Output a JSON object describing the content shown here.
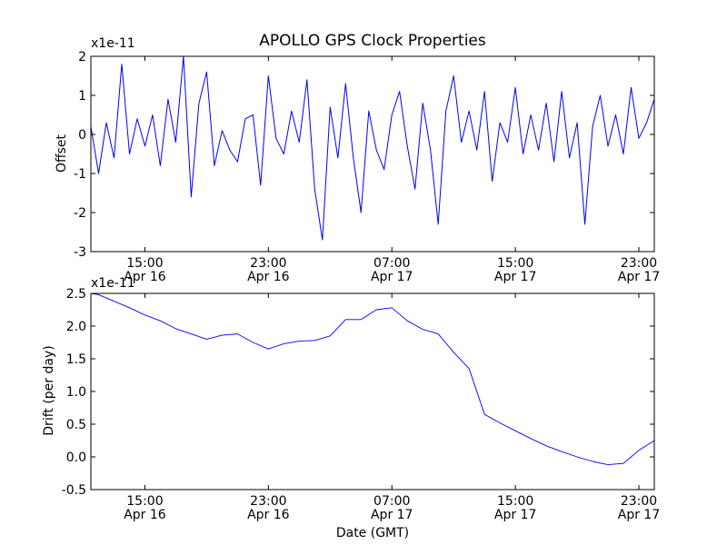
{
  "figure": {
    "title": "APOLLO GPS Clock Properties",
    "background": "#ffffff",
    "line_color": "#0000ff"
  },
  "chart_data": [
    {
      "type": "line",
      "title": "APOLLO GPS Clock Properties",
      "xlabel": "",
      "ylabel": "Offset",
      "y_scale_label": "x1e-11",
      "xlim": [
        "Apr 16 11:30",
        "Apr 18 00:00"
      ],
      "ylim": [
        -3,
        2
      ],
      "yticks": [
        "2",
        "1",
        "0",
        "-1",
        "-2",
        "-3"
      ],
      "xticks": [
        {
          "time": "15:00",
          "date": "Apr 16"
        },
        {
          "time": "23:00",
          "date": "Apr 16"
        },
        {
          "time": "07:00",
          "date": "Apr 17"
        },
        {
          "time": "15:00",
          "date": "Apr 17"
        },
        {
          "time": "23:00",
          "date": "Apr 17"
        }
      ],
      "x": [
        "Apr 16 11:30",
        "Apr 16 12:00",
        "Apr 16 12:30",
        "Apr 16 13:00",
        "Apr 16 13:30",
        "Apr 16 14:00",
        "Apr 16 14:30",
        "Apr 16 15:00",
        "Apr 16 15:30",
        "Apr 16 16:00",
        "Apr 16 16:30",
        "Apr 16 17:00",
        "Apr 16 17:30",
        "Apr 16 18:00",
        "Apr 16 18:30",
        "Apr 16 19:00",
        "Apr 16 19:30",
        "Apr 16 20:00",
        "Apr 16 20:30",
        "Apr 16 21:00",
        "Apr 16 21:30",
        "Apr 16 22:00",
        "Apr 16 22:30",
        "Apr 16 23:00",
        "Apr 16 23:30",
        "Apr 17 00:00",
        "Apr 17 00:30",
        "Apr 17 01:00",
        "Apr 17 01:30",
        "Apr 17 02:00",
        "Apr 17 02:30",
        "Apr 17 03:00",
        "Apr 17 03:30",
        "Apr 17 04:00",
        "Apr 17 04:30",
        "Apr 17 05:00",
        "Apr 17 05:30",
        "Apr 17 06:00",
        "Apr 17 06:30",
        "Apr 17 07:00",
        "Apr 17 07:30",
        "Apr 17 08:00",
        "Apr 17 08:30",
        "Apr 17 09:00",
        "Apr 17 09:30",
        "Apr 17 10:00",
        "Apr 17 10:30",
        "Apr 17 11:00",
        "Apr 17 11:30",
        "Apr 17 12:00",
        "Apr 17 12:30",
        "Apr 17 13:00",
        "Apr 17 13:30",
        "Apr 17 14:00",
        "Apr 17 14:30",
        "Apr 17 15:00",
        "Apr 17 15:30",
        "Apr 17 16:00",
        "Apr 17 16:30",
        "Apr 17 17:00",
        "Apr 17 17:30",
        "Apr 17 18:00",
        "Apr 17 18:30",
        "Apr 17 19:00",
        "Apr 17 19:30",
        "Apr 17 20:00",
        "Apr 17 20:30",
        "Apr 17 21:00",
        "Apr 17 21:30",
        "Apr 17 22:00",
        "Apr 17 22:30",
        "Apr 17 23:00",
        "Apr 17 23:30",
        "Apr 18 00:00"
      ],
      "series": [
        {
          "values": [
            0.2,
            -1.0,
            0.3,
            -0.6,
            1.8,
            -0.5,
            0.4,
            -0.3,
            0.5,
            -0.8,
            0.9,
            -0.2,
            2.0,
            -1.6,
            0.8,
            1.6,
            -0.8,
            0.1,
            -0.4,
            -0.7,
            0.4,
            0.5,
            -1.3,
            1.5,
            -0.1,
            -0.5,
            0.6,
            -0.2,
            1.4,
            -1.4,
            -2.7,
            0.7,
            -0.6,
            1.3,
            -0.6,
            -2.0,
            0.6,
            -0.4,
            -0.9,
            0.5,
            1.1,
            -0.3,
            -1.4,
            0.8,
            -0.4,
            -2.3,
            0.6,
            1.5,
            -0.2,
            0.6,
            -0.4,
            1.1,
            -1.2,
            0.3,
            -0.2,
            1.2,
            -0.5,
            0.5,
            -0.4,
            0.8,
            -0.7,
            1.1,
            -0.6,
            0.3,
            -2.3,
            0.2,
            1.0,
            -0.3,
            0.5,
            -0.5,
            1.2,
            -0.1,
            0.3,
            0.9
          ]
        }
      ]
    },
    {
      "type": "line",
      "title": "",
      "xlabel": "Date (GMT)",
      "ylabel": "Drift (per day)",
      "y_scale_label": "x1e-11",
      "xlim": [
        "Apr 16 11:30",
        "Apr 18 00:00"
      ],
      "ylim": [
        -0.5,
        2.5
      ],
      "yticks": [
        "2.5",
        "2.0",
        "1.5",
        "1.0",
        "0.5",
        "0.0",
        "-0.5"
      ],
      "xticks": [
        {
          "time": "15:00",
          "date": "Apr 16"
        },
        {
          "time": "23:00",
          "date": "Apr 16"
        },
        {
          "time": "07:00",
          "date": "Apr 17"
        },
        {
          "time": "15:00",
          "date": "Apr 17"
        },
        {
          "time": "23:00",
          "date": "Apr 17"
        }
      ],
      "x": [
        "Apr 16 11:30",
        "Apr 16 12:00",
        "Apr 16 13:00",
        "Apr 16 14:00",
        "Apr 16 15:00",
        "Apr 16 16:00",
        "Apr 16 17:00",
        "Apr 16 18:00",
        "Apr 16 19:00",
        "Apr 16 20:00",
        "Apr 16 21:00",
        "Apr 16 22:00",
        "Apr 16 23:00",
        "Apr 17 00:00",
        "Apr 17 01:00",
        "Apr 17 02:00",
        "Apr 17 03:00",
        "Apr 17 04:00",
        "Apr 17 05:00",
        "Apr 17 06:00",
        "Apr 17 07:00",
        "Apr 17 08:00",
        "Apr 17 09:00",
        "Apr 17 10:00",
        "Apr 17 11:00",
        "Apr 17 12:00",
        "Apr 17 13:00",
        "Apr 17 14:00",
        "Apr 17 15:00",
        "Apr 17 16:00",
        "Apr 17 17:00",
        "Apr 17 18:00",
        "Apr 17 19:00",
        "Apr 17 20:00",
        "Apr 17 21:00",
        "Apr 17 22:00",
        "Apr 17 23:00",
        "Apr 18 00:00"
      ],
      "series": [
        {
          "values": [
            2.5,
            2.48,
            2.38,
            2.28,
            2.17,
            2.08,
            1.96,
            1.88,
            1.8,
            1.86,
            1.88,
            1.75,
            1.65,
            1.73,
            1.77,
            1.78,
            1.85,
            2.1,
            2.1,
            2.25,
            2.28,
            2.08,
            1.95,
            1.88,
            1.6,
            1.35,
            0.65,
            0.52,
            0.4,
            0.28,
            0.17,
            0.08,
            0.0,
            -0.07,
            -0.12,
            -0.1,
            0.1,
            0.25
          ]
        }
      ]
    }
  ]
}
